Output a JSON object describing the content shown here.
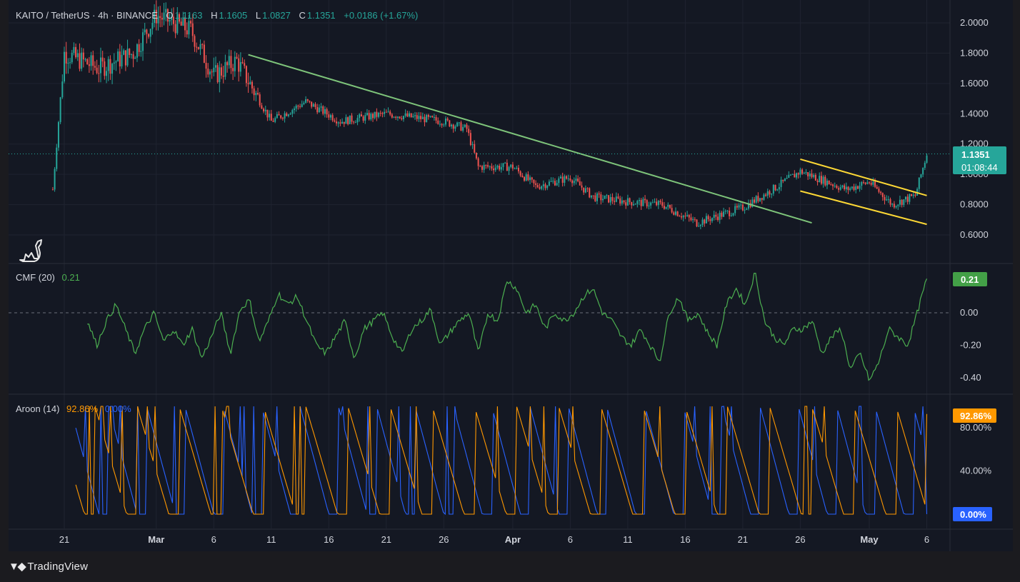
{
  "header": {
    "symbol": "KAITO / TetherUS · 4h · BINANCE",
    "o_label": "O",
    "o_value": "1.1163",
    "h_label": "H",
    "h_value": "1.1605",
    "l_label": "L",
    "l_value": "1.0827",
    "c_label": "C",
    "c_value": "1.1351",
    "change": "+0.0186 (+1.67%)"
  },
  "price_badge": {
    "price": "1.1351",
    "countdown": "01:08:44"
  },
  "cmf": {
    "label": "CMF (20)",
    "value": "0.21"
  },
  "aroon": {
    "label": "Aroon (14)",
    "up": "92.86%",
    "down": "0.00%"
  },
  "brand": "TradingView",
  "colors": {
    "background": "#141823",
    "up": "#26a69a",
    "down": "#ef5350",
    "trendline": "#7ec47a",
    "channel": "#fdd835",
    "cmf": "#4caf50",
    "aroon_up": "#ff9800",
    "aroon_down": "#2962ff",
    "badge_price": "#26a69a"
  },
  "chart_data": [
    {
      "type": "candlestick",
      "title": "KAITO / TetherUS · 4h · BINANCE",
      "x_ticks": [
        "21",
        "Mar",
        "6",
        "11",
        "16",
        "21",
        "26",
        "Apr",
        "6",
        "11",
        "16",
        "21",
        "26",
        "May",
        "6"
      ],
      "y_ticks": [
        "2.0000",
        "1.8000",
        "1.6000",
        "1.4000",
        "1.2000",
        "1.0000",
        "0.8000",
        "0.6000"
      ],
      "ylim": [
        0.5,
        2.1
      ],
      "last_close": 1.1351,
      "approx_close_path": [
        {
          "date": "Feb 20",
          "close": 0.9
        },
        {
          "date": "Feb 21",
          "close": 1.8
        },
        {
          "date": "Feb 24",
          "close": 1.7
        },
        {
          "date": "Feb 27",
          "close": 1.8
        },
        {
          "date": "Mar 1",
          "close": 2.05
        },
        {
          "date": "Mar 4",
          "close": 1.95
        },
        {
          "date": "Mar 6",
          "close": 1.65
        },
        {
          "date": "Mar 8",
          "close": 1.75
        },
        {
          "date": "Mar 11",
          "close": 1.35
        },
        {
          "date": "Mar 14",
          "close": 1.48
        },
        {
          "date": "Mar 17",
          "close": 1.35
        },
        {
          "date": "Mar 21",
          "close": 1.4
        },
        {
          "date": "Mar 26",
          "close": 1.35
        },
        {
          "date": "Mar 28",
          "close": 1.3
        },
        {
          "date": "Mar 29",
          "close": 1.05
        },
        {
          "date": "Apr 1",
          "close": 1.05
        },
        {
          "date": "Apr 3",
          "close": 0.92
        },
        {
          "date": "Apr 6",
          "close": 0.98
        },
        {
          "date": "Apr 8",
          "close": 0.85
        },
        {
          "date": "Apr 11",
          "close": 0.82
        },
        {
          "date": "Apr 14",
          "close": 0.8
        },
        {
          "date": "Apr 17",
          "close": 0.68
        },
        {
          "date": "Apr 21",
          "close": 0.78
        },
        {
          "date": "Apr 24",
          "close": 0.92
        },
        {
          "date": "Apr 26",
          "close": 1.02
        },
        {
          "date": "Apr 30",
          "close": 0.9
        },
        {
          "date": "May 2",
          "close": 0.95
        },
        {
          "date": "May 4",
          "close": 0.8
        },
        {
          "date": "May 6",
          "close": 0.86
        },
        {
          "date": "May 7",
          "close": 1.135
        }
      ],
      "annotations": [
        {
          "kind": "trendline",
          "from": {
            "date": "Mar 9",
            "price": 1.79
          },
          "to": {
            "date": "Apr 27",
            "price": 0.68
          }
        },
        {
          "kind": "channel-upper",
          "from": {
            "date": "Apr 26",
            "price": 1.1
          },
          "to": {
            "date": "May 7",
            "price": 0.86
          }
        },
        {
          "kind": "channel-lower",
          "from": {
            "date": "Apr 26",
            "price": 0.89
          },
          "to": {
            "date": "May 7",
            "price": 0.67
          }
        }
      ]
    },
    {
      "type": "line",
      "title": "CMF (20)",
      "y_ticks": [
        "0.00",
        "-0.20",
        "-0.40"
      ],
      "ylim": [
        -0.48,
        0.26
      ],
      "last_value": 0.21,
      "series": [
        {
          "name": "CMF (20)",
          "values": [
            -0.05,
            -0.2,
            -0.05,
            0.05,
            -0.1,
            -0.25,
            -0.1,
            0.0,
            -0.18,
            -0.1,
            -0.2,
            -0.1,
            -0.28,
            -0.15,
            0.0,
            -0.25,
            0.02,
            0.08,
            -0.18,
            -0.05,
            0.12,
            0.05,
            0.1,
            -0.05,
            -0.2,
            -0.25,
            -0.15,
            -0.05,
            -0.28,
            -0.1,
            -0.05,
            0.0,
            -0.15,
            -0.25,
            -0.1,
            -0.05,
            0.02,
            -0.2,
            -0.12,
            -0.05,
            0.0,
            -0.25,
            0.0,
            -0.05,
            0.2,
            0.15,
            0.0,
            0.05,
            -0.1,
            0.0,
            -0.05,
            0.0,
            0.1,
            0.15,
            0.0,
            -0.05,
            -0.15,
            -0.2,
            -0.1,
            -0.2,
            -0.3,
            0.0,
            0.1,
            -0.05,
            0.0,
            -0.12,
            -0.2,
            0.05,
            0.15,
            0.05,
            0.25,
            -0.05,
            -0.15,
            -0.2,
            -0.1,
            -0.1,
            -0.05,
            -0.25,
            -0.15,
            -0.1,
            -0.35,
            -0.25,
            -0.42,
            -0.3,
            -0.1,
            -0.15,
            -0.2,
            0.0,
            0.21
          ]
        }
      ]
    },
    {
      "type": "line",
      "title": "Aroon (14)",
      "y_ticks": [
        "80.00%",
        "40.00%"
      ],
      "ylim": [
        0,
        100
      ],
      "last_values": {
        "up": 92.86,
        "down": 0.0
      }
    }
  ]
}
